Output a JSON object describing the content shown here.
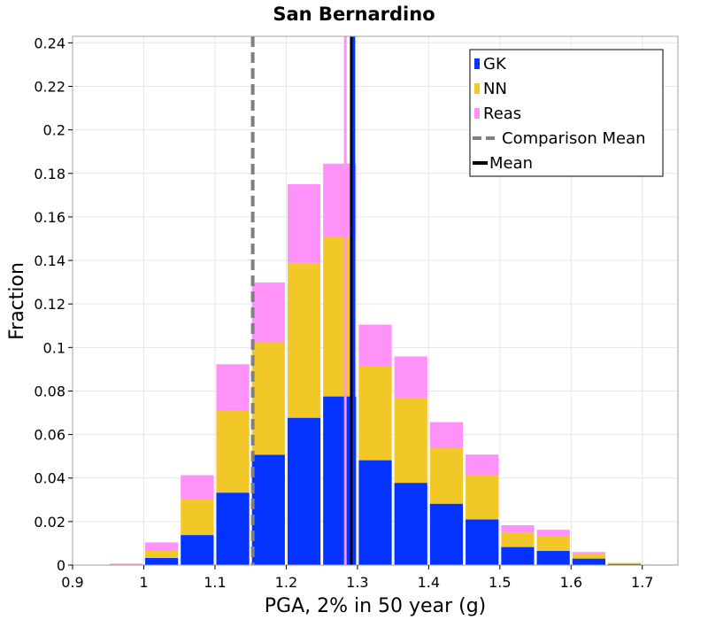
{
  "chart_data": {
    "type": "bar",
    "stacked": true,
    "title": "San Bernardino",
    "xlabel": "PGA, 2% in 50 year (g)",
    "ylabel": "Fraction",
    "xlim": [
      0.9,
      1.75
    ],
    "ylim": [
      0,
      0.243
    ],
    "x_ticks": [
      "0.9",
      "1",
      "1.1",
      "1.2",
      "1.3",
      "1.4",
      "1.5",
      "1.6",
      "1.7"
    ],
    "y_ticks": [
      "0",
      "0.02",
      "0.04",
      "0.06",
      "0.08",
      "0.1",
      "0.12",
      "0.14",
      "0.16",
      "0.18",
      "0.2",
      "0.22",
      "0.24"
    ],
    "grid": true,
    "legend_position": "top-right",
    "bin_width": 0.05,
    "bin_centers": [
      0.975,
      1.025,
      1.075,
      1.125,
      1.175,
      1.225,
      1.275,
      1.325,
      1.375,
      1.425,
      1.475,
      1.525,
      1.575,
      1.625,
      1.675,
      1.725
    ],
    "series": [
      {
        "name": "GK",
        "color": "#0433ff",
        "values": [
          0.0003,
          0.0033,
          0.0138,
          0.0333,
          0.0507,
          0.0677,
          0.0775,
          0.0482,
          0.0378,
          0.0282,
          0.021,
          0.0083,
          0.0065,
          0.003,
          0.0005,
          0.0002
        ]
      },
      {
        "name": "NN",
        "color": "#f1c827",
        "values": [
          0.0002,
          0.0033,
          0.0163,
          0.0377,
          0.0517,
          0.0712,
          0.0735,
          0.043,
          0.0388,
          0.0255,
          0.0203,
          0.0067,
          0.0067,
          0.002,
          0.0003,
          0.0001
        ]
      },
      {
        "name": "Reas",
        "color": "#fe92f9",
        "values": [
          0.0002,
          0.0038,
          0.0112,
          0.0213,
          0.0275,
          0.0362,
          0.0335,
          0.0193,
          0.0193,
          0.012,
          0.0095,
          0.0033,
          0.003,
          0.001,
          0.0002,
          0.0
        ]
      }
    ],
    "lines": [
      {
        "name": "Comparison Mean",
        "x": 1.153,
        "color": "#808080",
        "style": "dashed"
      },
      {
        "name": "Mean",
        "x": 1.292,
        "color": "#000000",
        "style": "solid"
      },
      {
        "name": "GK mean",
        "x": 1.295,
        "color": "#0433ff",
        "style": "solid"
      },
      {
        "name": "Reas mean",
        "x": 1.283,
        "color": "#fe92f9",
        "style": "solid"
      }
    ],
    "legend": [
      "GK",
      "NN",
      "Reas",
      "Comparison Mean",
      "Mean"
    ]
  }
}
